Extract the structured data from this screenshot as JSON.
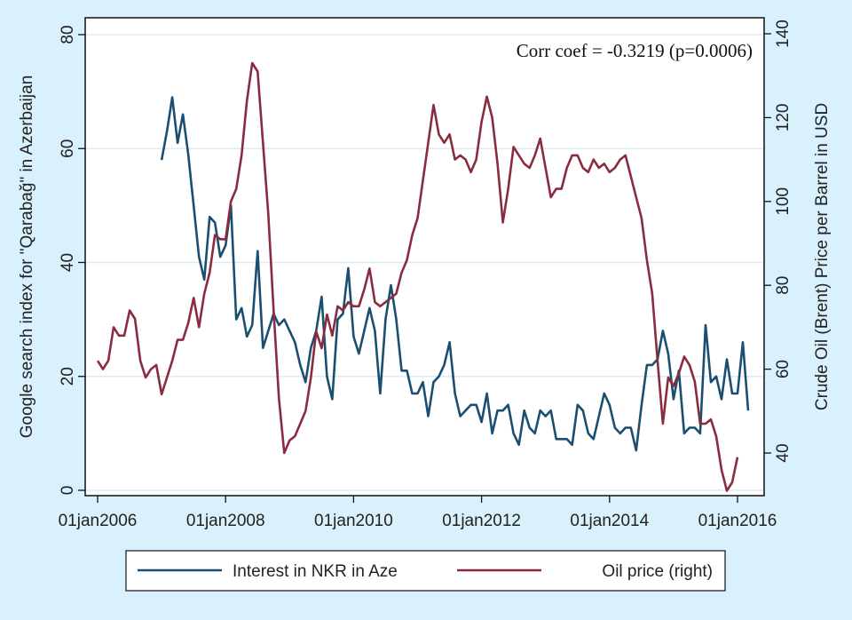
{
  "chart_data": {
    "type": "line",
    "title": "",
    "annotation": "Corr coef = -0.3219 (p=0.0006)",
    "xlabel": "",
    "ylabel_left": "Google search index for \"Qarabağ\" in Azerbaijan",
    "ylabel_right": "Crude Oil (Brent) Price per Barrel in USD",
    "x_ticks": [
      "01jan2006",
      "01jan2008",
      "01jan2010",
      "01jan2012",
      "01jan2014",
      "01jan2016"
    ],
    "x_tick_years": [
      2006,
      2008,
      2010,
      2012,
      2014,
      2016
    ],
    "xlim": [
      2006.0,
      2016.2
    ],
    "y_left_ticks": [
      0,
      20,
      40,
      60,
      80
    ],
    "ylim_left": [
      0,
      80
    ],
    "y_right_ticks": [
      40,
      60,
      80,
      100,
      120,
      140
    ],
    "ylim_right": [
      30,
      140
    ],
    "grid": true,
    "legend_position": "bottom",
    "series": [
      {
        "name": "Interest in NKR in Aze",
        "axis": "left",
        "color": "#1a4f72",
        "start": 2007.0,
        "step_months": 1,
        "values": [
          58,
          63,
          69,
          61,
          66,
          59,
          50,
          41,
          37,
          48,
          47,
          41,
          43,
          50,
          30,
          32,
          27,
          29,
          42,
          25,
          28,
          31,
          29,
          30,
          28,
          26,
          22,
          19,
          25,
          28,
          34,
          20,
          16,
          30,
          31,
          39,
          27,
          24,
          28,
          32,
          28,
          17,
          30,
          36,
          30,
          21,
          21,
          17,
          17,
          19,
          13,
          19,
          20,
          22,
          26,
          17,
          13,
          14,
          15,
          15,
          12,
          17,
          10,
          14,
          14,
          15,
          10,
          8,
          14,
          11,
          10,
          14,
          13,
          14,
          9,
          9,
          9,
          8,
          15,
          14,
          10,
          9,
          13,
          17,
          15,
          11,
          10,
          11,
          11,
          7,
          15,
          22,
          22,
          23,
          28,
          24,
          16,
          21,
          10,
          11,
          11,
          10,
          29,
          19,
          20,
          16,
          23,
          17,
          17,
          26,
          14
        ]
      },
      {
        "name": "Oil price (right)",
        "axis": "right",
        "color": "#8b2b40",
        "start": 2006.0,
        "step_months": 1,
        "values": [
          62,
          60,
          62,
          70,
          68,
          68,
          74,
          72,
          62,
          58,
          60,
          61,
          54,
          58,
          62,
          67,
          67,
          71,
          77,
          70,
          78,
          83,
          92,
          91,
          91,
          100,
          103,
          111,
          124,
          133,
          131,
          114,
          97,
          74,
          53,
          40,
          43,
          44,
          47,
          50,
          58,
          69,
          65,
          73,
          68,
          75,
          74,
          76,
          75,
          75,
          79,
          84,
          76,
          75,
          76,
          77,
          78,
          83,
          86,
          92,
          96,
          105,
          114,
          123,
          116,
          114,
          116,
          110,
          111,
          110,
          107,
          110,
          119,
          125,
          120,
          109,
          95,
          103,
          113,
          111,
          109,
          108,
          111,
          115,
          108,
          101,
          103,
          103,
          108,
          111,
          111,
          108,
          107,
          110,
          108,
          109,
          107,
          108,
          110,
          111,
          106,
          101,
          96,
          86,
          78,
          62,
          47,
          58,
          56,
          59,
          63,
          61,
          57,
          47,
          47,
          48,
          44,
          36,
          31,
          33,
          39
        ]
      }
    ]
  }
}
